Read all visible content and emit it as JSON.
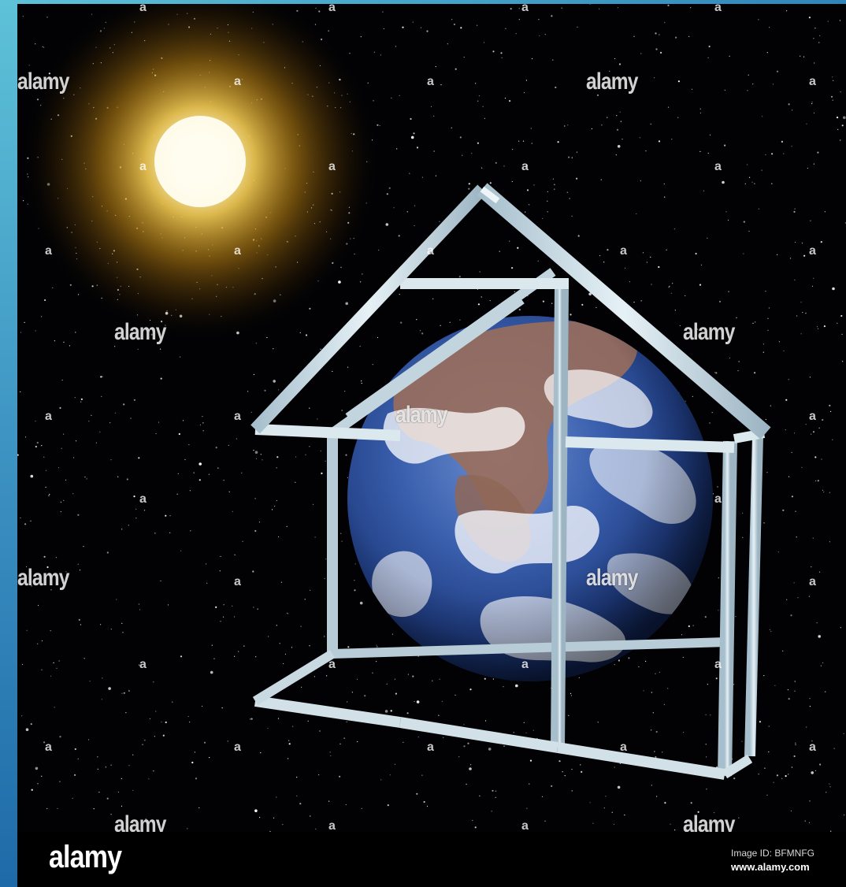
{
  "watermark": {
    "text": "alamy",
    "small_mark": "a"
  },
  "footer": {
    "logo": "alamy",
    "image_id": "Image ID: BFMNFG",
    "url": "www.alamy.com"
  },
  "scene": {
    "objects": [
      "sun-icon",
      "earth-globe",
      "greenhouse-frame",
      "starfield"
    ],
    "colors": {
      "space": "#020204",
      "sun_core": "#fffbe8",
      "sun_glow": "#e6a21c",
      "ocean": "#2b4f9c",
      "land": "#9a6e5c",
      "frame": "#c9dbe4",
      "edge_strip": "#3a8fc0"
    }
  }
}
